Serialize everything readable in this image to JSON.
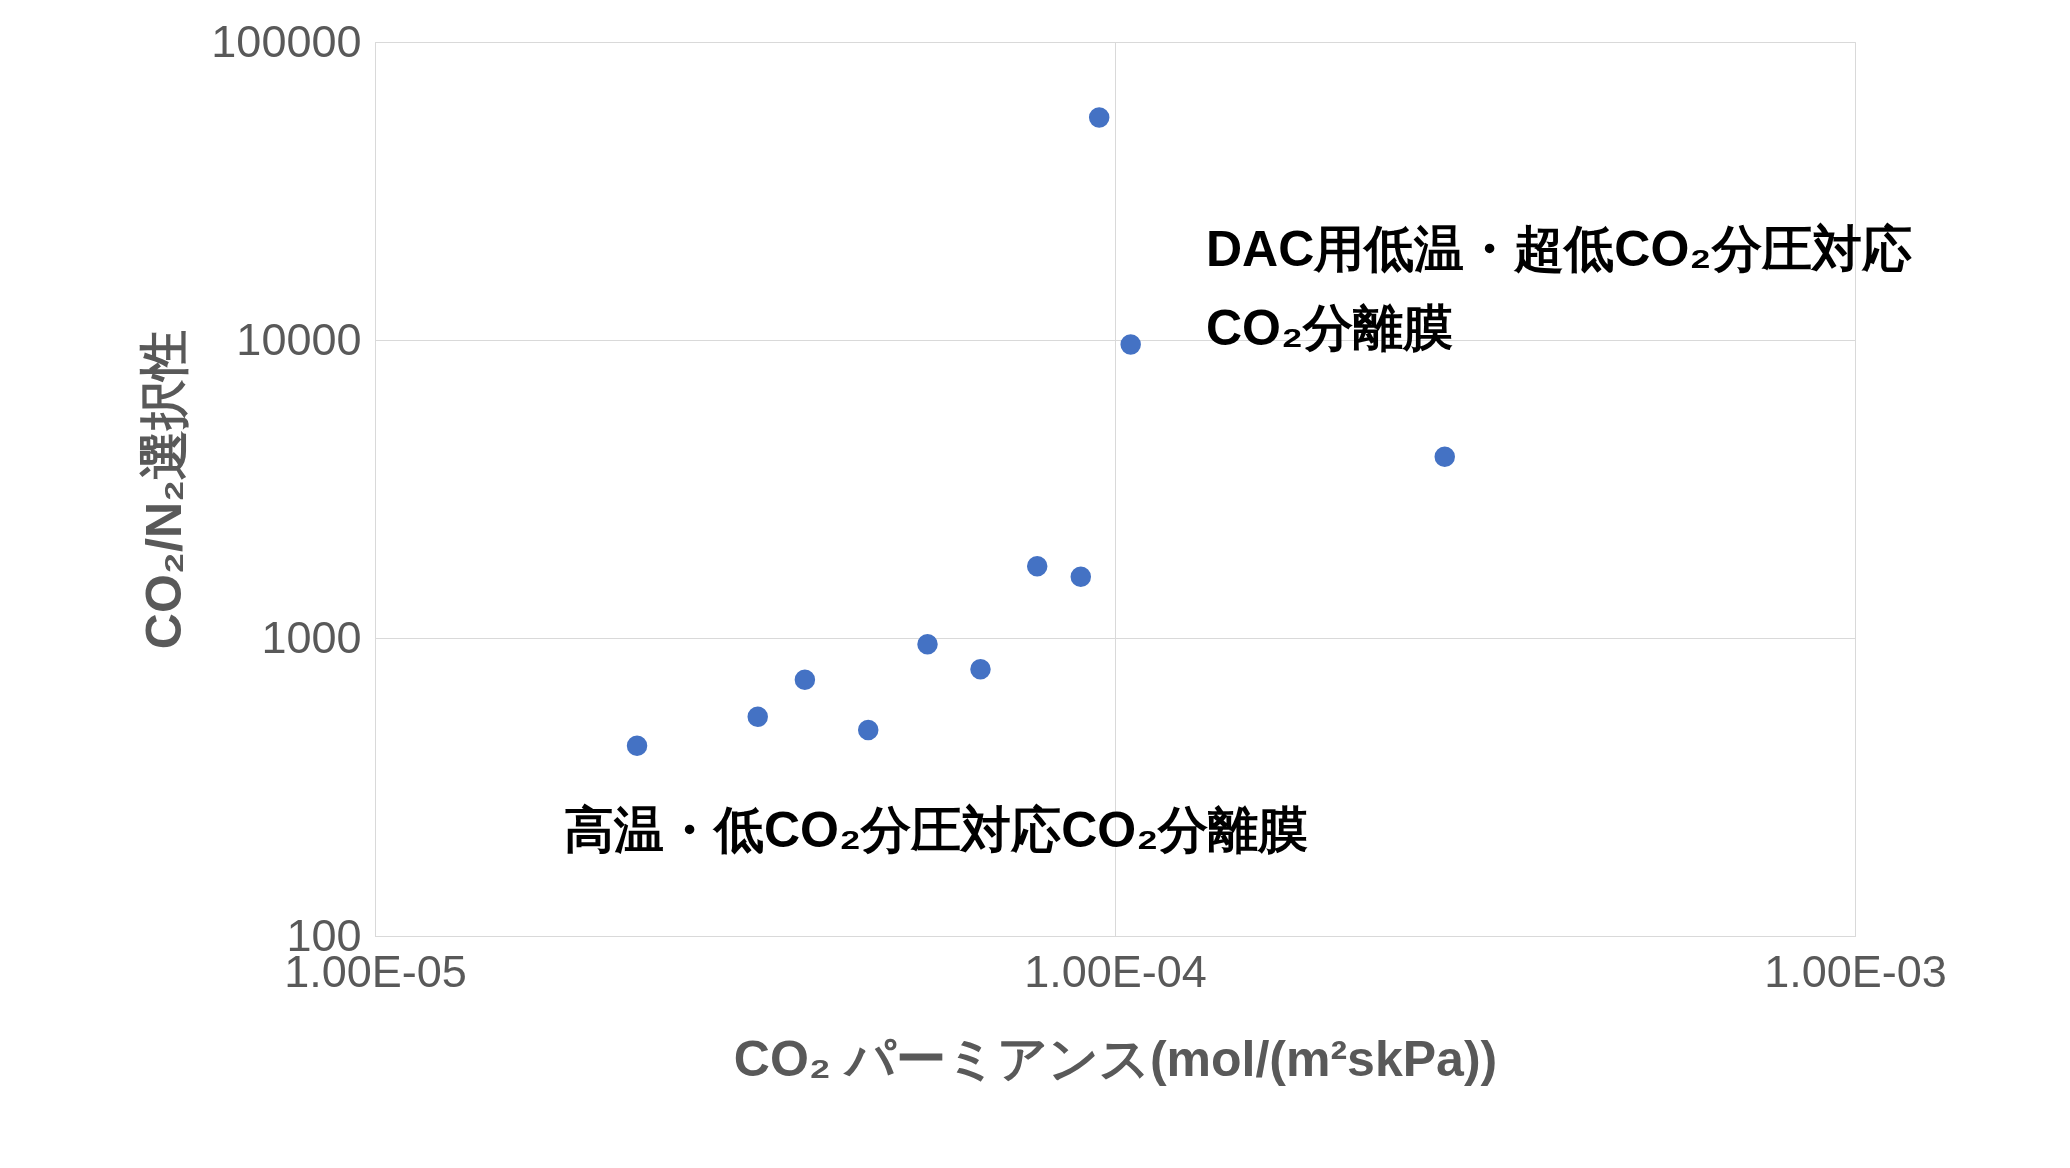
{
  "chart_data": {
    "type": "scatter",
    "xlabel": "CO₂ パーミアンス(mol/(m²skPa))",
    "ylabel": "CO₂/N₂選択性",
    "x": [
      2.26e-05,
      3.29e-05,
      3.81e-05,
      4.64e-05,
      5.58e-05,
      6.58e-05,
      7.85e-05,
      8.99e-05,
      9.52e-05,
      0.000105,
      0.000279
    ],
    "series": [
      {
        "color": "#4472c4",
        "values": [
          435,
          544,
          724,
          491,
          953,
          785,
          1740,
          1604,
          55800,
          9660,
          4060
        ]
      }
    ],
    "log": "xy",
    "xlim": [
      1e-05,
      0.001
    ],
    "xticks": [
      {
        "value": 1e-05,
        "label": "1.00E-05"
      },
      {
        "value": 0.0001,
        "label": "1.00E-04"
      },
      {
        "value": 0.001,
        "label": "1.00E-03"
      }
    ],
    "ylim": [
      100,
      100000
    ],
    "yticks": [
      100,
      1000,
      10000,
      100000
    ],
    "grid": true,
    "marker": "circle",
    "legend": false,
    "annotations": [
      "DAC用低温・超低CO₂分圧対応",
      "CO₂分離膜",
      "高温・低CO₂分圧対応CO₂分離膜"
    ]
  }
}
